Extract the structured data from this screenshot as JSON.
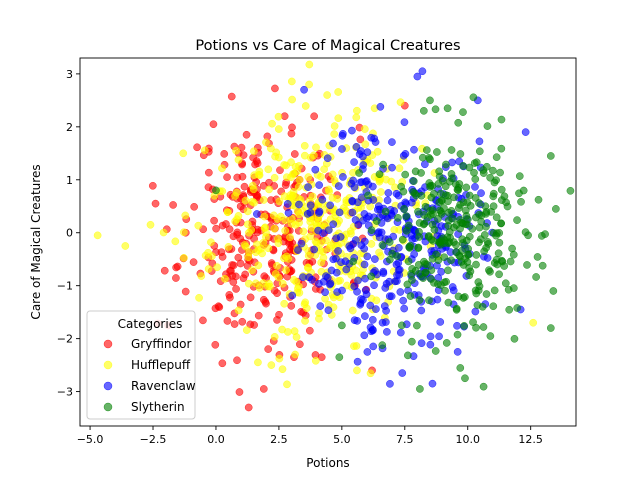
{
  "chart_data": {
    "type": "scatter",
    "title": "Potions vs Care of Magical Creatures",
    "xlabel": "Potions",
    "ylabel": "Care of Magical Creatures",
    "xlim": [
      -5.4,
      14.3
    ],
    "ylim": [
      -3.65,
      3.3
    ],
    "x_ticks": [
      -5.0,
      -2.5,
      0.0,
      2.5,
      5.0,
      7.5,
      10.0,
      12.5
    ],
    "x_tick_labels": [
      "−5.0",
      "−2.5",
      "0.0",
      "2.5",
      "5.0",
      "7.5",
      "10.0",
      "12.5"
    ],
    "y_ticks": [
      -3,
      -2,
      -1,
      0,
      1,
      2,
      3
    ],
    "y_tick_labels": [
      "−3",
      "−2",
      "−1",
      "0",
      "1",
      "2",
      "3"
    ],
    "grid": false,
    "legend": {
      "title": "Categories",
      "placement": "lower-left"
    },
    "series": [
      {
        "name": "Gryffindor",
        "color": "#ff0000",
        "center": [
          2.0,
          0.0
        ],
        "spread": [
          1.6,
          1.0
        ],
        "count": 300,
        "seed": 11,
        "points": [
          [
            -0.1,
            2.05
          ],
          [
            0.9,
            1.5
          ],
          [
            1.3,
            -3.3
          ],
          [
            1.9,
            -2.95
          ],
          [
            3.1,
            -2.35
          ],
          [
            4.2,
            -2.35
          ],
          [
            6.2,
            -2.6
          ],
          [
            7.5,
            2.4
          ],
          [
            3.9,
            2.2
          ],
          [
            -1.9,
            -1.75
          ],
          [
            -1.2,
            0.0
          ],
          [
            -2.4,
            0.55
          ]
        ]
      },
      {
        "name": "Hufflepuff",
        "color": "#ffff00",
        "center": [
          3.8,
          0.1
        ],
        "spread": [
          2.0,
          1.0
        ],
        "count": 400,
        "seed": 23,
        "points": [
          [
            -4.7,
            -0.05
          ],
          [
            -3.6,
            -0.25
          ],
          [
            -2.6,
            0.15
          ],
          [
            -1.3,
            1.5
          ],
          [
            0.8,
            1.55
          ],
          [
            3.7,
            2.8
          ],
          [
            6.3,
            2.35
          ],
          [
            5.6,
            -2.6
          ],
          [
            12.6,
            -1.7
          ],
          [
            2.2,
            -2.5
          ]
        ]
      },
      {
        "name": "Ravenclaw",
        "color": "#0000ff",
        "center": [
          6.9,
          -0.05
        ],
        "spread": [
          1.7,
          1.0
        ],
        "count": 330,
        "seed": 37,
        "points": [
          [
            3.5,
            2.7
          ],
          [
            8.2,
            3.05
          ],
          [
            8.0,
            2.95
          ],
          [
            10.4,
            2.5
          ],
          [
            12.3,
            1.9
          ],
          [
            8.6,
            -2.85
          ],
          [
            7.4,
            -2.65
          ],
          [
            9.6,
            -2.25
          ],
          [
            12.1,
            -1.45
          ]
        ]
      },
      {
        "name": "Slytherin",
        "color": "#008000",
        "center": [
          9.7,
          -0.05
        ],
        "spread": [
          1.6,
          0.95
        ],
        "count": 310,
        "seed": 53,
        "points": [
          [
            8.5,
            2.5
          ],
          [
            9.2,
            2.35
          ],
          [
            8.1,
            -2.95
          ],
          [
            13.5,
            0.45
          ],
          [
            13.4,
            -1.1
          ],
          [
            13.3,
            -1.8
          ],
          [
            13.3,
            1.45
          ],
          [
            0.0,
            0.8
          ],
          [
            5.0,
            -1.75
          ],
          [
            4.9,
            -2.35
          ]
        ]
      }
    ]
  }
}
